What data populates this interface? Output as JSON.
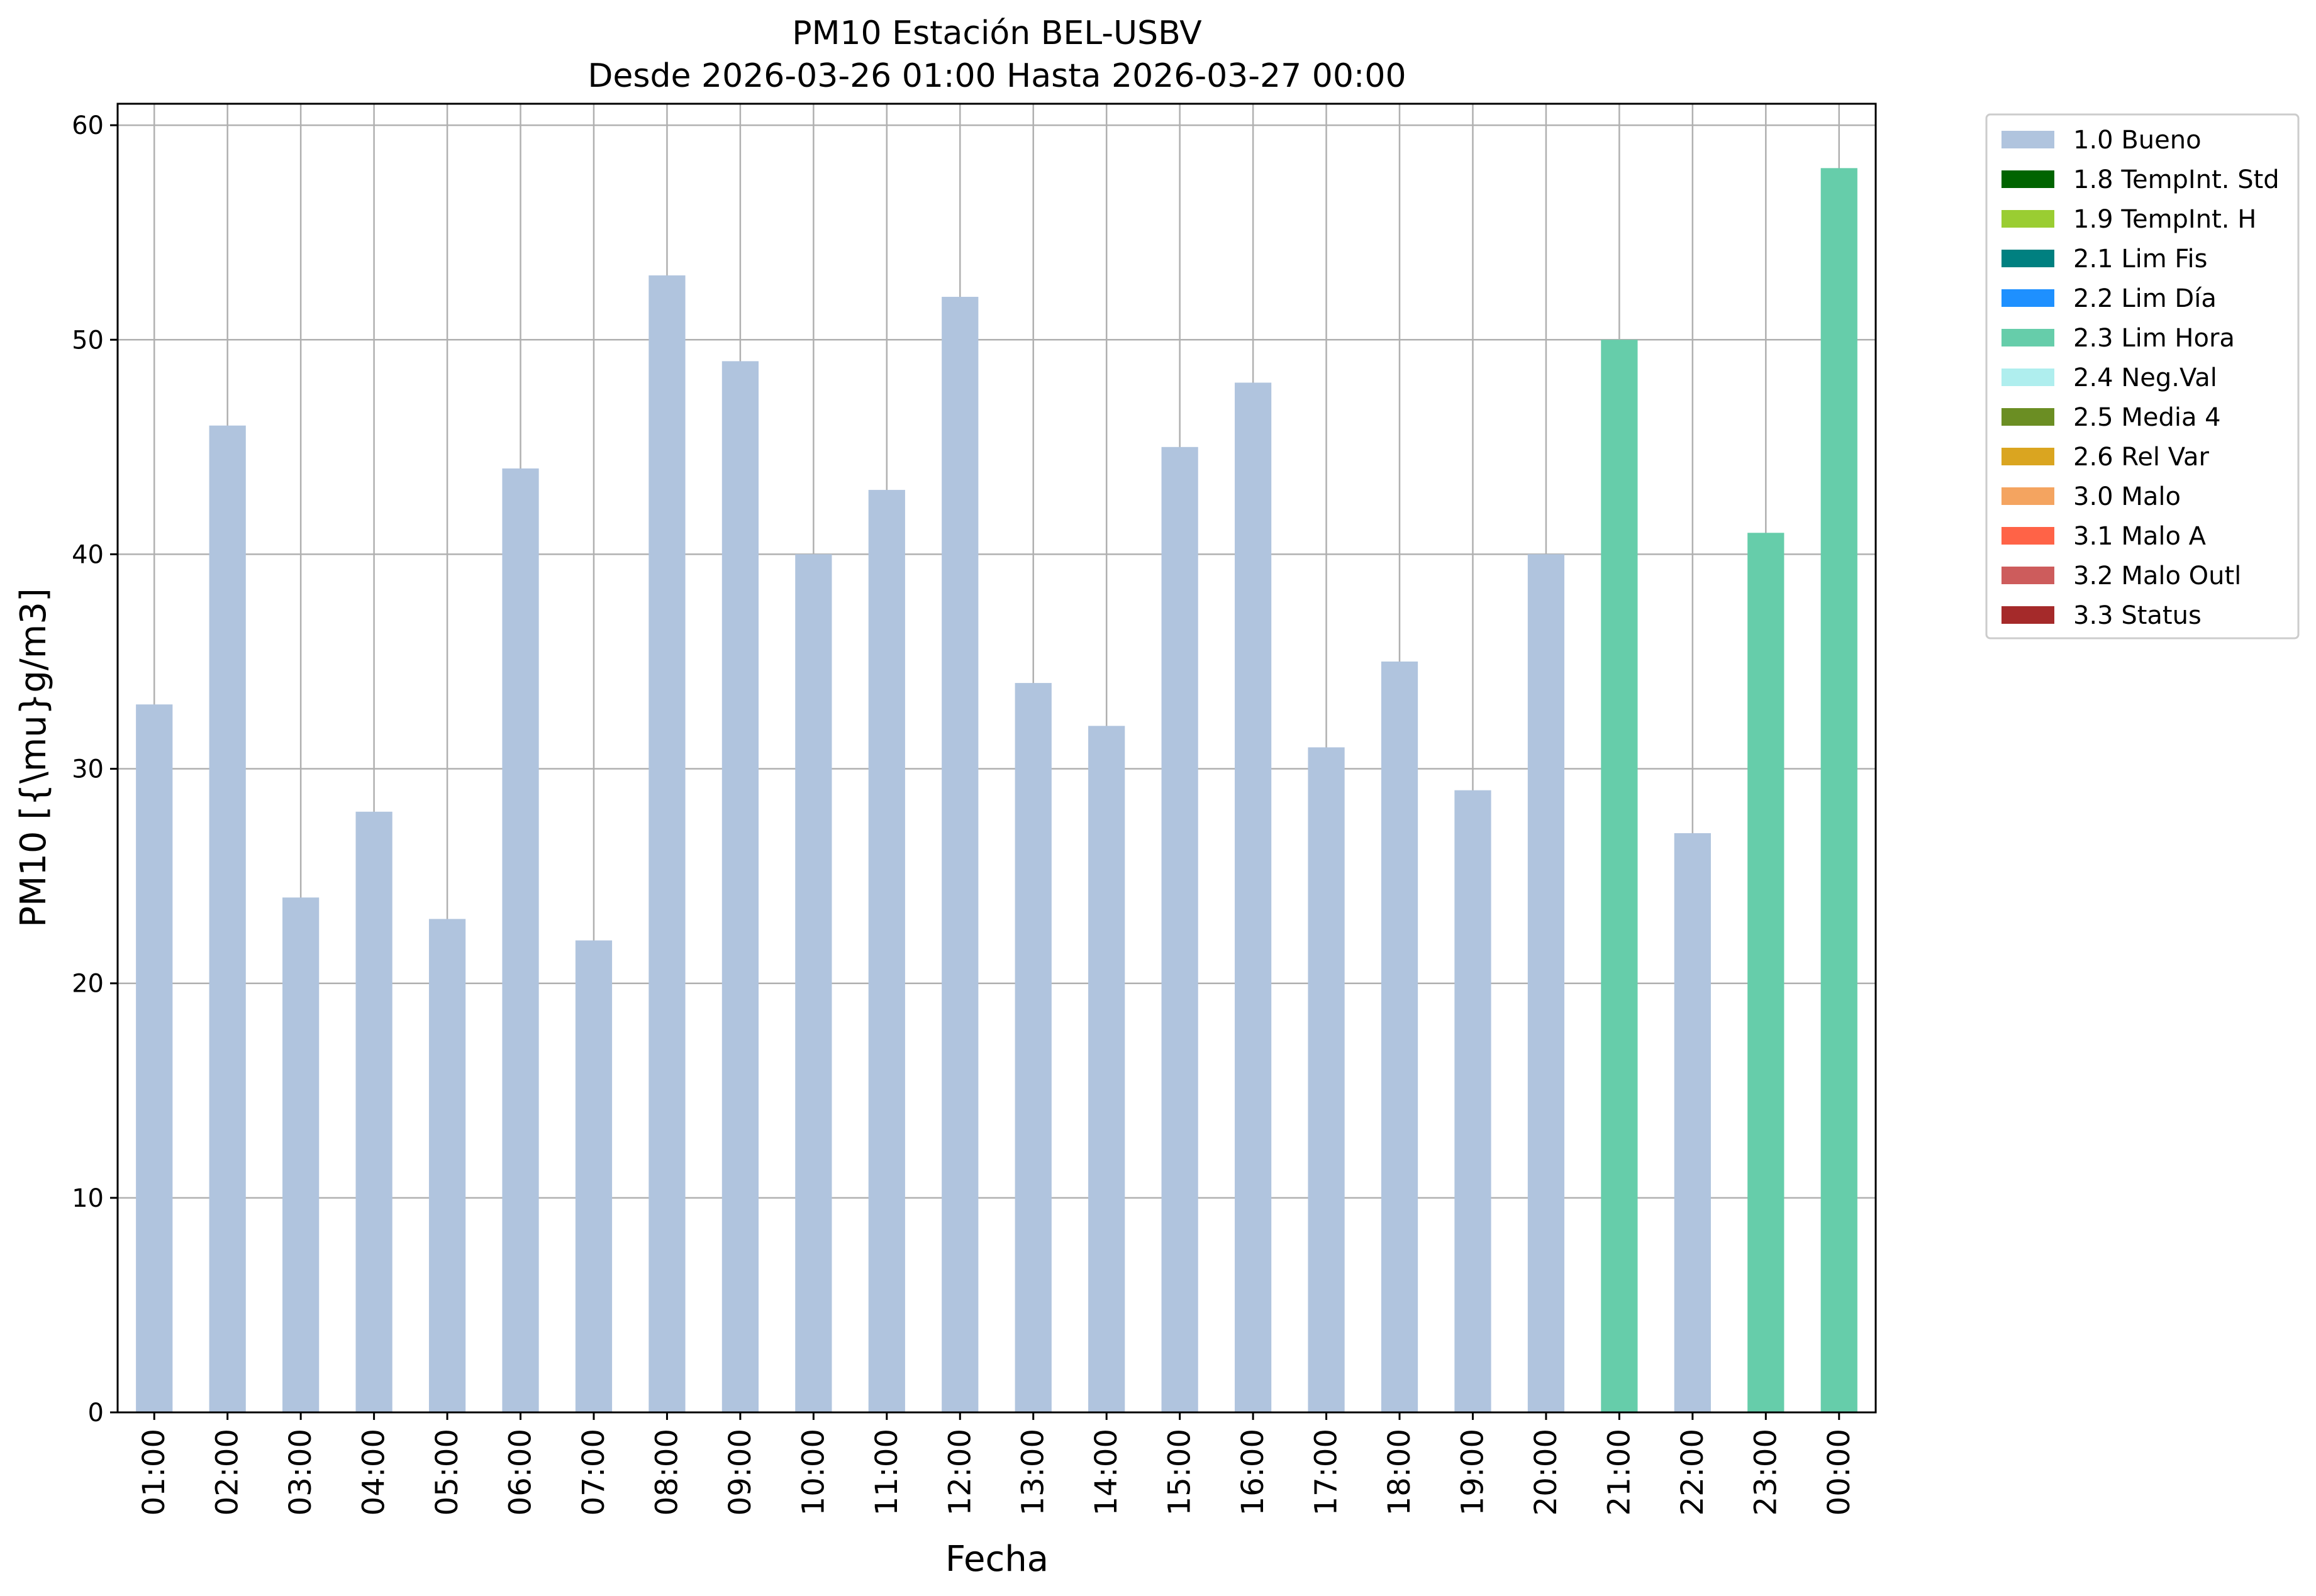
{
  "chart_data": {
    "type": "bar",
    "title": "PM10 Estación BEL-USBV",
    "subtitle": "Desde 2026-03-26 01:00 Hasta 2026-03-27 00:00",
    "xlabel": "Fecha",
    "ylabel": "PM10 [{\\mu}g/m3]",
    "ylim": [
      0,
      61
    ],
    "yticks": [
      0,
      10,
      20,
      30,
      40,
      50,
      60
    ],
    "grid": true,
    "legend_position": "outside-top-right",
    "categories": [
      "01:00",
      "02:00",
      "03:00",
      "04:00",
      "05:00",
      "06:00",
      "07:00",
      "08:00",
      "09:00",
      "10:00",
      "11:00",
      "12:00",
      "13:00",
      "14:00",
      "15:00",
      "16:00",
      "17:00",
      "18:00",
      "19:00",
      "20:00",
      "21:00",
      "22:00",
      "23:00",
      "00:00"
    ],
    "values": [
      33,
      46,
      24,
      28,
      23,
      44,
      22,
      53,
      49,
      40,
      43,
      52,
      34,
      32,
      45,
      48,
      31,
      35,
      29,
      40,
      50,
      27,
      41,
      58
    ],
    "flags": [
      "1.0 Bueno",
      "1.0 Bueno",
      "1.0 Bueno",
      "1.0 Bueno",
      "1.0 Bueno",
      "1.0 Bueno",
      "1.0 Bueno",
      "1.0 Bueno",
      "1.0 Bueno",
      "1.0 Bueno",
      "1.0 Bueno",
      "1.0 Bueno",
      "1.0 Bueno",
      "1.0 Bueno",
      "1.0 Bueno",
      "1.0 Bueno",
      "1.0 Bueno",
      "1.0 Bueno",
      "1.0 Bueno",
      "1.0 Bueno",
      "2.3 Lim Hora",
      "1.0 Bueno",
      "2.3 Lim Hora",
      "2.3 Lim Hora"
    ],
    "legend": [
      {
        "name": "1.0 Bueno",
        "color": "#b0c4de"
      },
      {
        "name": "1.8 TempInt. Std",
        "color": "#006400"
      },
      {
        "name": "1.9 TempInt. H",
        "color": "#9acd32"
      },
      {
        "name": "2.1 Lim Fis",
        "color": "#008080"
      },
      {
        "name": "2.2 Lim Día",
        "color": "#1e90ff"
      },
      {
        "name": "2.3 Lim Hora",
        "color": "#66cdaa"
      },
      {
        "name": "2.4 Neg.Val",
        "color": "#afeeee"
      },
      {
        "name": "2.5 Media 4",
        "color": "#6b8e23"
      },
      {
        "name": "2.6 Rel Var",
        "color": "#daa520"
      },
      {
        "name": "3.0 Malo",
        "color": "#f4a460"
      },
      {
        "name": "3.1 Malo A",
        "color": "#ff6347"
      },
      {
        "name": "3.2 Malo Outl",
        "color": "#cd5c5c"
      },
      {
        "name": "3.3 Status",
        "color": "#a52a2a"
      }
    ]
  }
}
